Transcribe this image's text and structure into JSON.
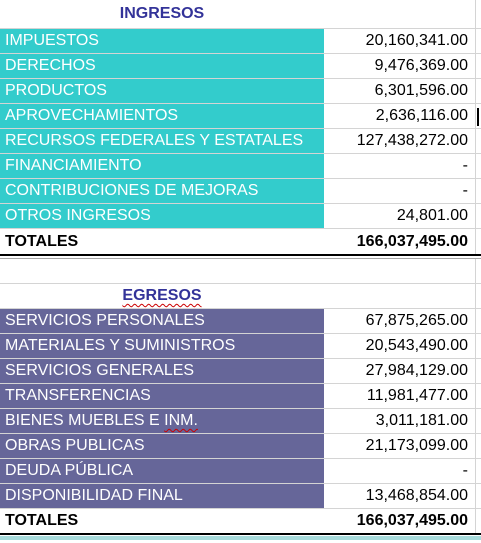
{
  "ingresos": {
    "header": "INGRESOS",
    "rows": [
      {
        "label": "IMPUESTOS",
        "value": "20,160,341.00"
      },
      {
        "label": "DERECHOS",
        "value": "9,476,369.00"
      },
      {
        "label": "PRODUCTOS",
        "value": "6,301,596.00"
      },
      {
        "label": "APROVECHAMIENTOS",
        "value": "2,636,116.00"
      },
      {
        "label": "RECURSOS FEDERALES Y ESTATALES",
        "value": "127,438,272.00"
      },
      {
        "label": "FINANCIAMIENTO",
        "value": "-"
      },
      {
        "label": "CONTRIBUCIONES DE MEJORAS",
        "value": "-"
      },
      {
        "label": "OTROS INGRESOS",
        "value": "24,801.00"
      }
    ],
    "total_label": "TOTALES",
    "total_value": "166,037,495.00"
  },
  "egresos": {
    "header": "EGRESOS",
    "rows": [
      {
        "label": "SERVICIOS PERSONALES",
        "value": "67,875,265.00"
      },
      {
        "label": "MATERIALES Y SUMINISTROS",
        "value": "20,543,490.00"
      },
      {
        "label": "SERVICIOS GENERALES",
        "value": "27,984,129.00"
      },
      {
        "label": "TRANSFERENCIAS",
        "value": "11,981,477.00"
      },
      {
        "label": "BIENES MUEBLES E INM.",
        "value": "3,011,181.00"
      },
      {
        "label": "OBRAS PUBLICAS",
        "value": "21,173,099.00"
      },
      {
        "label": "DEUDA PÚBLICA",
        "value": "-"
      },
      {
        "label": "DISPONIBILIDAD FINAL",
        "value": "13,468,854.00"
      }
    ],
    "total_label": "TOTALES",
    "total_value": "166,037,495.00"
  },
  "colors": {
    "ingresos_fill": "#33cccc",
    "egresos_fill": "#666699",
    "header_text": "#333399"
  }
}
